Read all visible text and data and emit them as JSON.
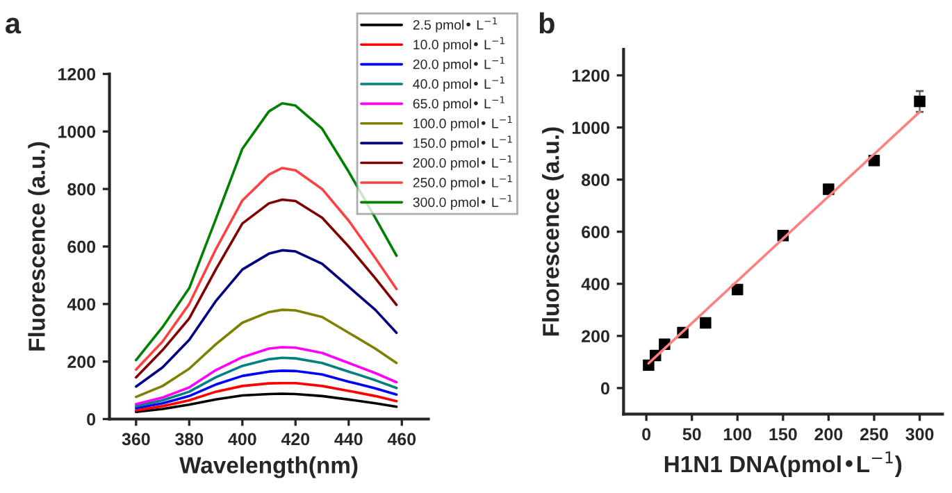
{
  "chart_data": [
    {
      "type": "line",
      "xlabel": "Wavelength(nm)",
      "ylabel": "Fluorescence (a.u.)",
      "annotations": [
        "a"
      ],
      "x": [
        360,
        370,
        380,
        390,
        400,
        410,
        415,
        420,
        430,
        440,
        450,
        458
      ],
      "xlim": [
        350,
        470
      ],
      "ylim": [
        0,
        1200
      ],
      "xticks": [
        360,
        380,
        400,
        420,
        440,
        460
      ],
      "yticks": [
        0,
        200,
        400,
        600,
        800,
        1000,
        1200
      ],
      "legend": "top right",
      "grid": false,
      "marker": "none",
      "line_style": "solid",
      "series": [
        {
          "name": "2.5 pmol• L$^{−1}$",
          "color": "#000000",
          "values": [
            25,
            35,
            50,
            68,
            82,
            87,
            88,
            87,
            80,
            68,
            55,
            43
          ]
        },
        {
          "name": "10.0 pmol• L$^{−1}$",
          "color": "#ff0000",
          "values": [
            30,
            45,
            65,
            95,
            115,
            124,
            125,
            125,
            115,
            98,
            80,
            62
          ]
        },
        {
          "name": "20.0 pmol• L$^{−1}$",
          "color": "#0000ff",
          "values": [
            38,
            55,
            80,
            120,
            150,
            165,
            168,
            167,
            155,
            130,
            107,
            85
          ]
        },
        {
          "name": "40.0 pmol• L$^{−1}$",
          "color": "#008080",
          "values": [
            45,
            65,
            95,
            145,
            185,
            208,
            213,
            211,
            195,
            165,
            135,
            108
          ]
        },
        {
          "name": "65.0 pmol• L$^{−1}$",
          "color": "#ff00ff",
          "values": [
            52,
            75,
            110,
            170,
            215,
            245,
            250,
            248,
            230,
            195,
            160,
            128
          ]
        },
        {
          "name": "100.0 pmol• L$^{−1}$",
          "color": "#808000",
          "values": [
            77,
            115,
            175,
            260,
            335,
            372,
            380,
            378,
            355,
            300,
            245,
            195
          ]
        },
        {
          "name": "150.0 pmol• L$^{−1}$",
          "color": "#000080",
          "values": [
            113,
            180,
            275,
            410,
            520,
            575,
            587,
            583,
            540,
            460,
            380,
            300
          ]
        },
        {
          "name": "200.0 pmol• L$^{−1}$",
          "color": "#800000",
          "values": [
            145,
            240,
            350,
            520,
            680,
            750,
            763,
            758,
            700,
            600,
            490,
            397
          ]
        },
        {
          "name": "250.0 pmol• L$^{−1}$",
          "color": "#ff4040",
          "values": [
            172,
            270,
            400,
            590,
            760,
            850,
            873,
            865,
            800,
            690,
            560,
            452
          ]
        },
        {
          "name": "300.0 pmol• L$^{−1}$",
          "color": "#008000",
          "values": [
            205,
            320,
            455,
            695,
            940,
            1070,
            1098,
            1090,
            1010,
            860,
            700,
            568
          ]
        }
      ]
    },
    {
      "type": "scatter",
      "xlabel": "H1N1 DNA(pmol•L$^{−1}$)",
      "ylabel": "Fluorescence (a.u.)",
      "annotations": [
        "b"
      ],
      "xlim": [
        -25,
        325
      ],
      "ylim": [
        -100,
        1300
      ],
      "xticks": [
        0,
        50,
        100,
        150,
        200,
        250,
        300
      ],
      "yticks": [
        0,
        200,
        400,
        600,
        800,
        1000,
        1200
      ],
      "legend": false,
      "grid": false,
      "series": [
        {
          "type": "scatter",
          "color": "#000000",
          "marker": "square",
          "x": [
            2.5,
            10,
            20,
            40,
            65,
            100,
            150,
            200,
            250,
            300
          ],
          "values": [
            88,
            125,
            168,
            213,
            250,
            378,
            585,
            763,
            873,
            1100
          ],
          "errors": [
            10,
            12,
            15,
            10,
            12,
            12,
            15,
            12,
            15,
            40
          ]
        },
        {
          "type": "line",
          "color": "#ff8080",
          "line_style": "solid",
          "x": [
            2.5,
            300
          ],
          "values": [
            95,
            1060
          ]
        }
      ]
    }
  ]
}
